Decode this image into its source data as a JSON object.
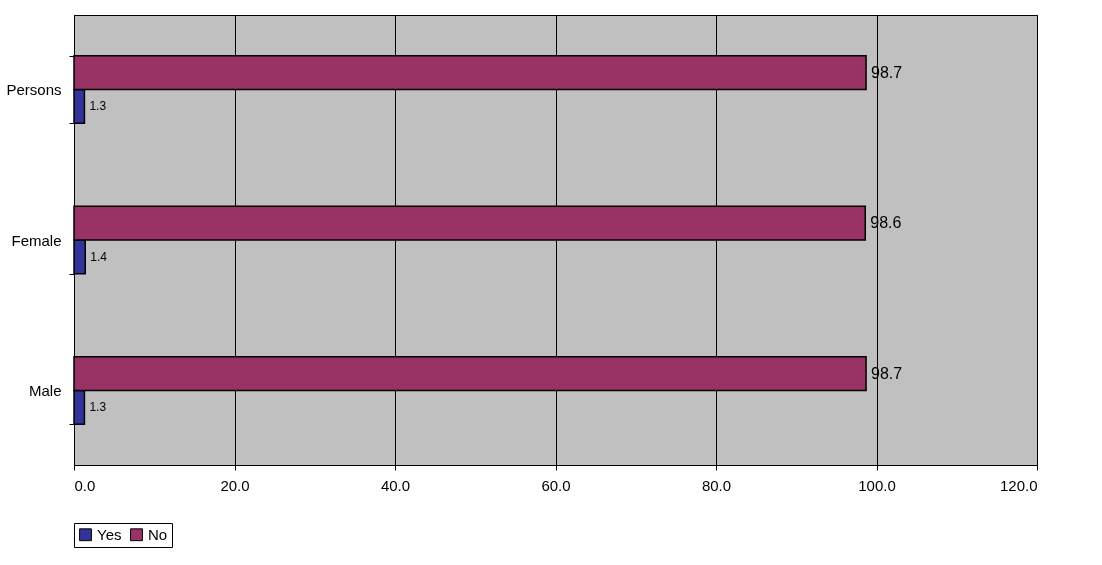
{
  "chart_data": {
    "type": "bar",
    "orientation": "horizontal",
    "categories": [
      "Persons",
      "Female",
      "Male"
    ],
    "series": [
      {
        "name": "Yes",
        "color": "#333399",
        "values": [
          1.3,
          1.4,
          1.3
        ]
      },
      {
        "name": "No",
        "color": "#993366",
        "values": [
          98.7,
          98.6,
          98.7
        ]
      }
    ],
    "xlim": [
      0,
      120
    ],
    "xticks": [
      {
        "value": 0,
        "label": "0.0"
      },
      {
        "value": 20,
        "label": "20.0"
      },
      {
        "value": 40,
        "label": "40.0"
      },
      {
        "value": 60,
        "label": "60.0"
      },
      {
        "value": 80,
        "label": "80.0"
      },
      {
        "value": 100,
        "label": "100.0"
      },
      {
        "value": 120,
        "label": "120.0"
      }
    ],
    "grid": "x",
    "legend": "bottom",
    "data_labels": true
  }
}
